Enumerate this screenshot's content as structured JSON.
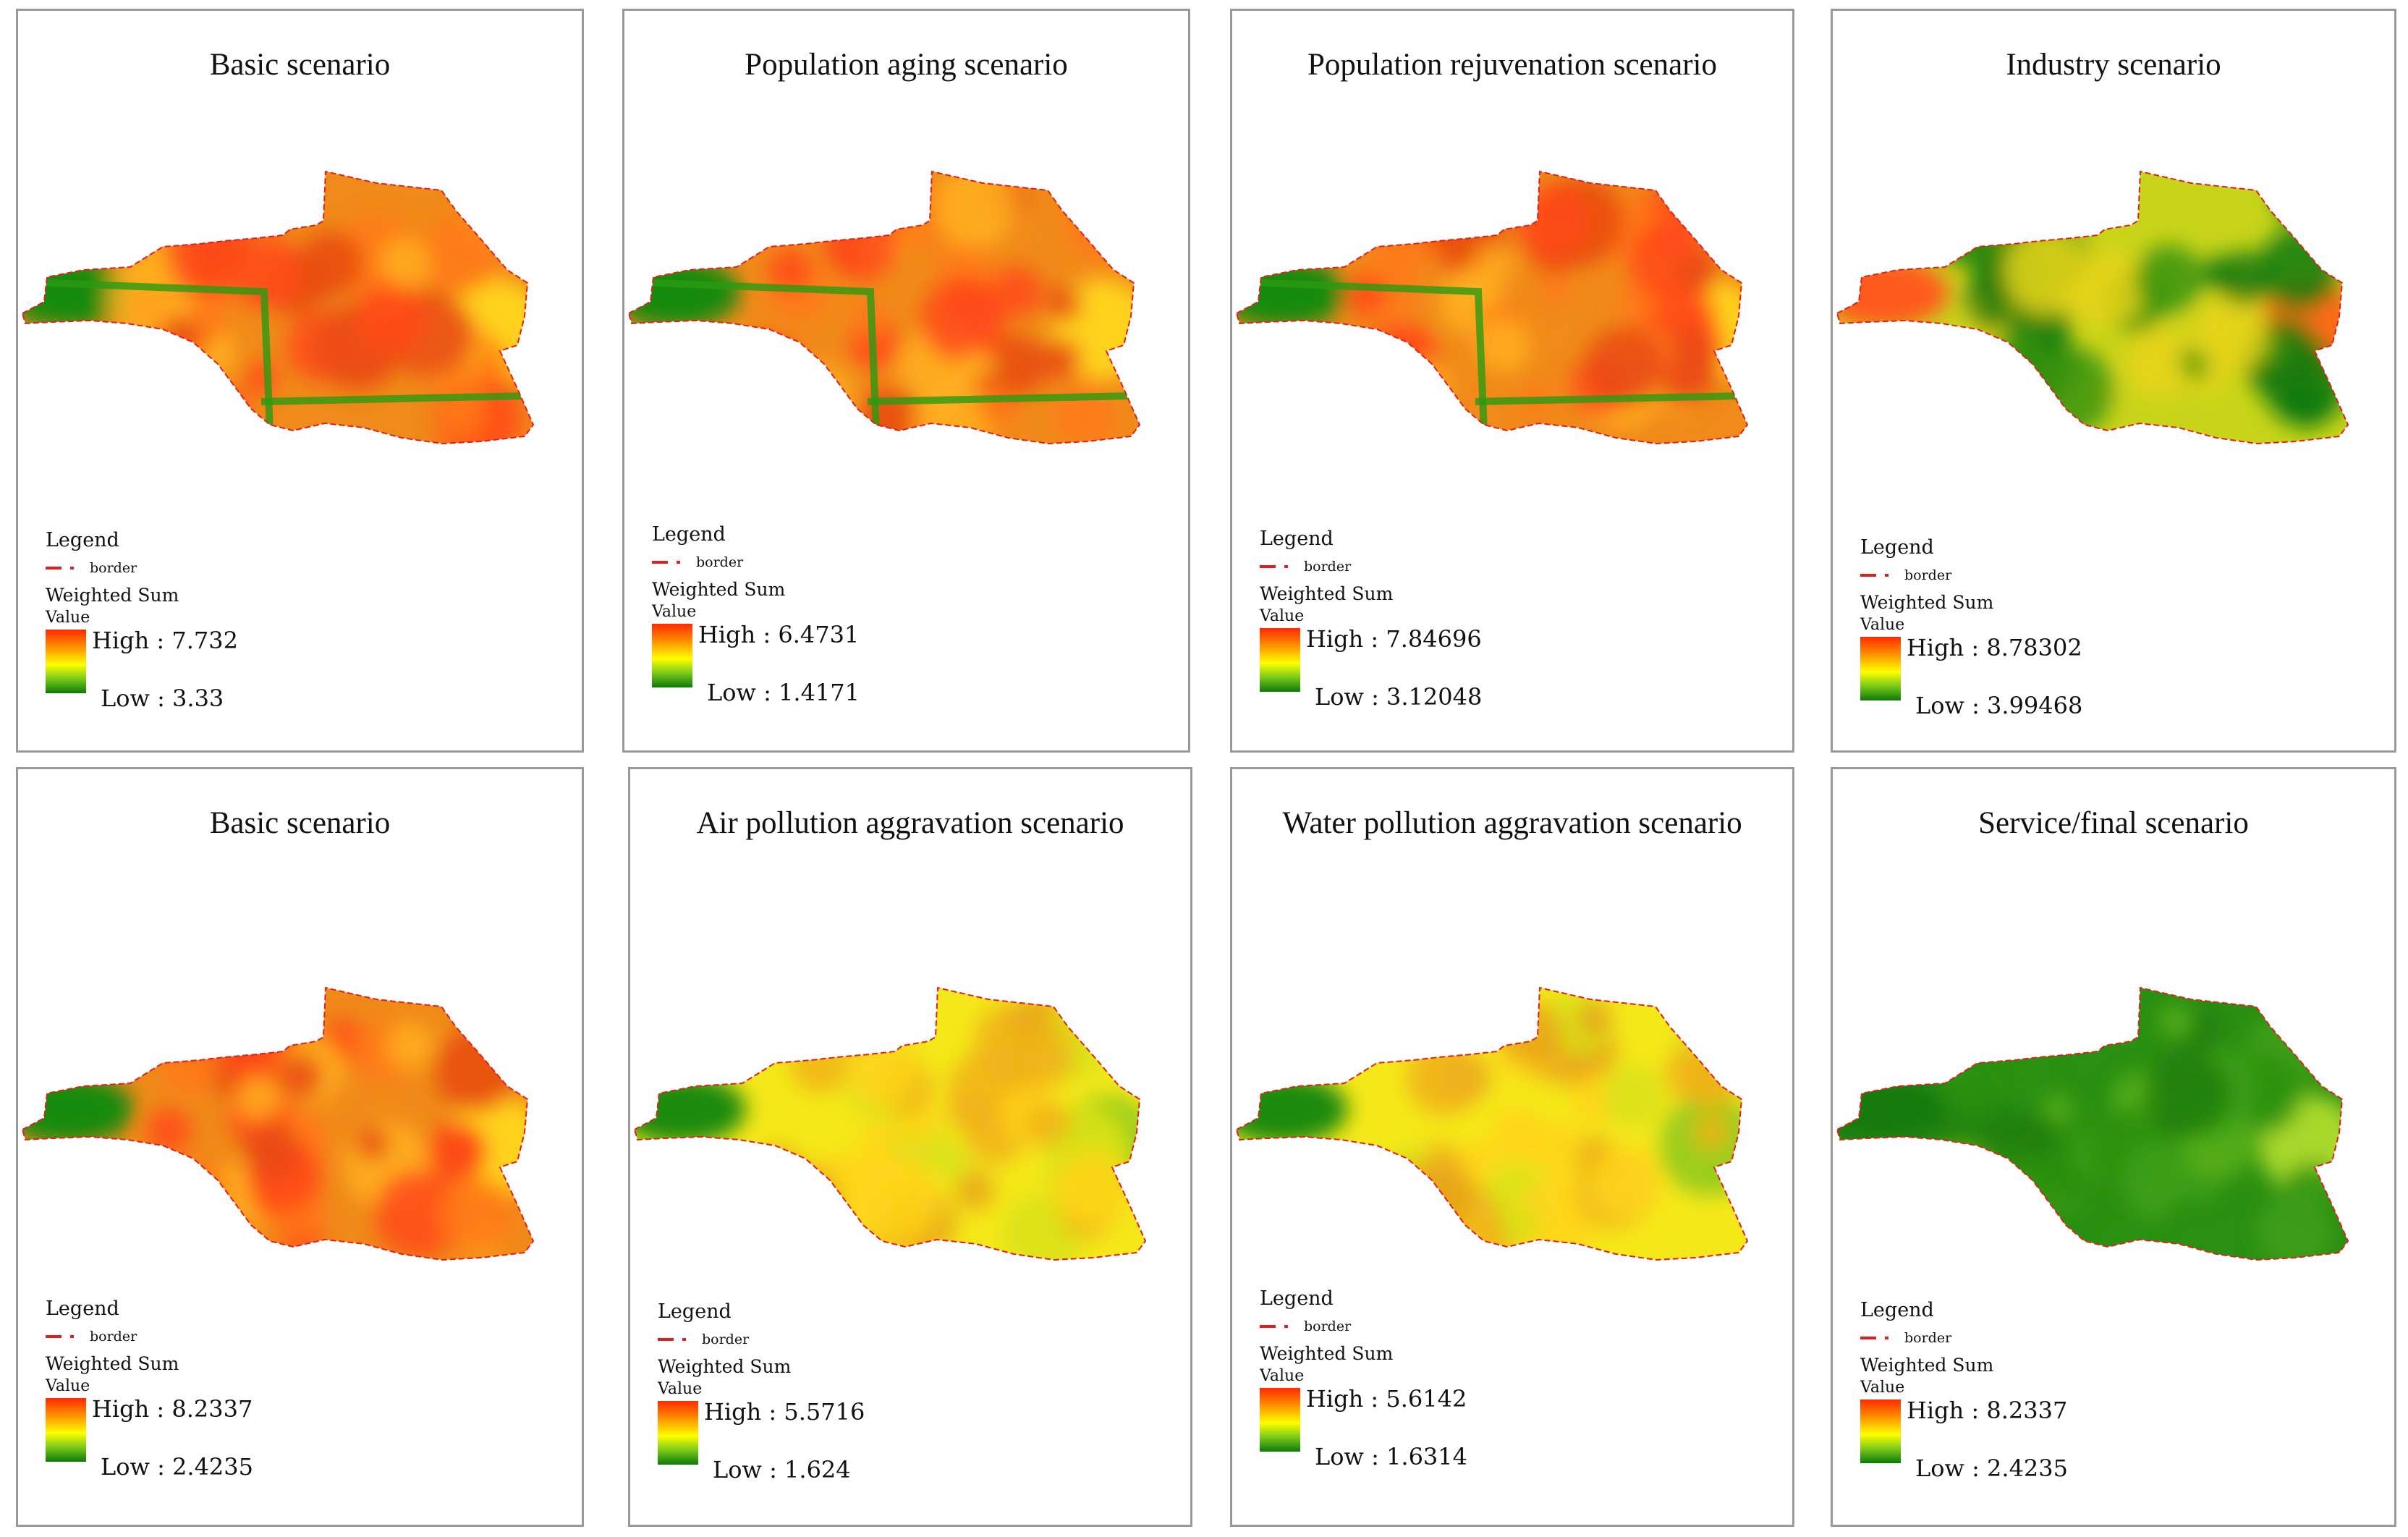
{
  "legend_labels": {
    "legend": "Legend",
    "border": "border",
    "weighted_sum": "Weighted Sum",
    "value": "Value",
    "high_prefix": "High : ",
    "low_prefix": "Low : "
  },
  "panels": [
    {
      "title": "Basic scenario",
      "high": "7.732",
      "low": "3.33",
      "palette": "warm"
    },
    {
      "title": "Population aging scenario",
      "high": "6.4731",
      "low": "1.4171",
      "palette": "warm"
    },
    {
      "title": "Population rejuvenation scenario",
      "high": "7.84696",
      "low": "3.12048",
      "palette": "warm"
    },
    {
      "title": "Industry scenario",
      "high": "8.78302",
      "low": "3.99468",
      "palette": "mixed"
    },
    {
      "title": "Basic scenario",
      "high": "8.2337",
      "low": "2.4235",
      "palette": "warm"
    },
    {
      "title": "Air pollution aggravation scenario",
      "high": "5.5716",
      "low": "1.624",
      "palette": "yellow"
    },
    {
      "title": "Water pollution aggravation scenario",
      "high": "5.6142",
      "low": "1.6314",
      "palette": "yellow"
    },
    {
      "title": "Service/final scenario",
      "high": "8.2337",
      "low": "2.4235",
      "palette": "green"
    }
  ],
  "colors": {
    "high": "#ff2a00",
    "mid": "#ffff00",
    "low": "#0d7a07",
    "border": "#e02020"
  }
}
